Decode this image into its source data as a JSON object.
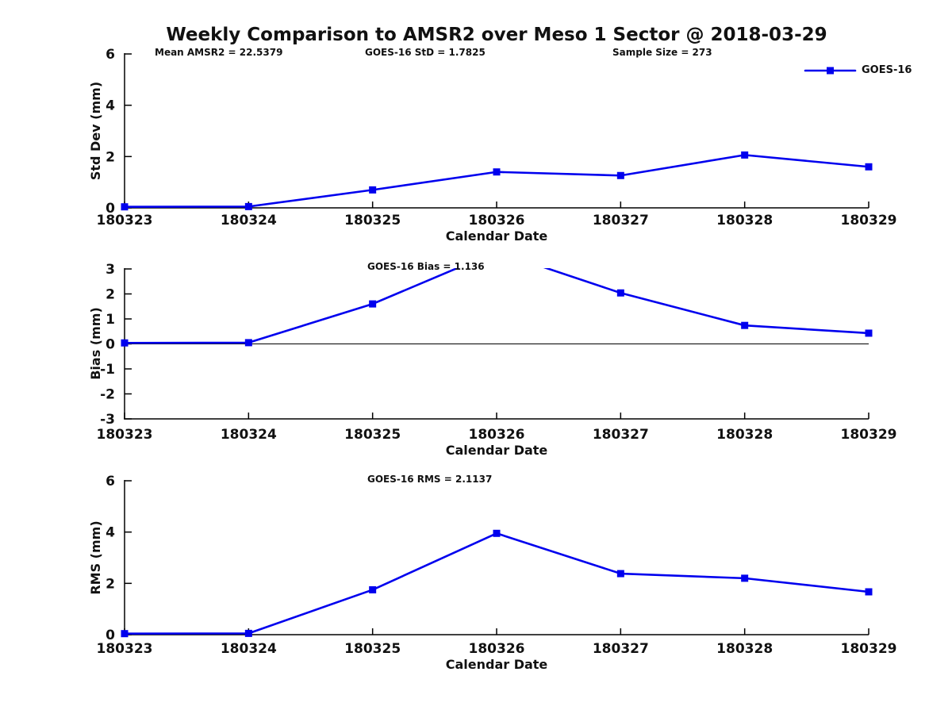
{
  "title": "Weekly Comparison to AMSR2 over Meso 1 Sector @ 2018-03-29",
  "legend": {
    "series_label": "GOES-16"
  },
  "chart_data": {
    "type": "line",
    "title": "Weekly Comparison to AMSR2 over Meso 1 Sector @ 2018-03-29",
    "x_categories": [
      "180323",
      "180324",
      "180325",
      "180326",
      "180327",
      "180328",
      "180329"
    ],
    "xlabel": "Calendar Date",
    "series_name": "GOES-16",
    "line_color": "#0000ee",
    "marker": "filled-square",
    "legend_position": "top-right",
    "grid": false,
    "subplots": [
      {
        "name": "std-dev",
        "ylabel": "Std Dev (mm)",
        "ylim": [
          0,
          6
        ],
        "yticks": [
          0,
          2,
          4,
          6
        ],
        "zero_line": false,
        "annotations": [
          "Mean AMSR2 = 22.5379",
          "GOES-16 StD = 1.7825",
          "Sample Size = 273"
        ],
        "values": [
          0.04,
          0.05,
          0.7,
          1.4,
          1.26,
          2.06,
          1.6
        ]
      },
      {
        "name": "bias",
        "ylabel": "Bias (mm)",
        "ylim": [
          -3,
          3
        ],
        "yticks": [
          3,
          2,
          1,
          0,
          -1,
          -2,
          -3
        ],
        "zero_line": true,
        "annotations": [
          "GOES-16 Bias = 1.136"
        ],
        "values": [
          0.04,
          0.05,
          1.6,
          3.7,
          2.04,
          0.74,
          0.43
        ]
      },
      {
        "name": "rms",
        "ylabel": "RMS (mm)",
        "ylim": [
          0,
          6
        ],
        "yticks": [
          0,
          2,
          4,
          6
        ],
        "zero_line": false,
        "annotations": [
          "GOES-16 RMS = 2.1137"
        ],
        "values": [
          0.04,
          0.05,
          1.75,
          3.95,
          2.38,
          2.2,
          1.67
        ]
      }
    ]
  }
}
